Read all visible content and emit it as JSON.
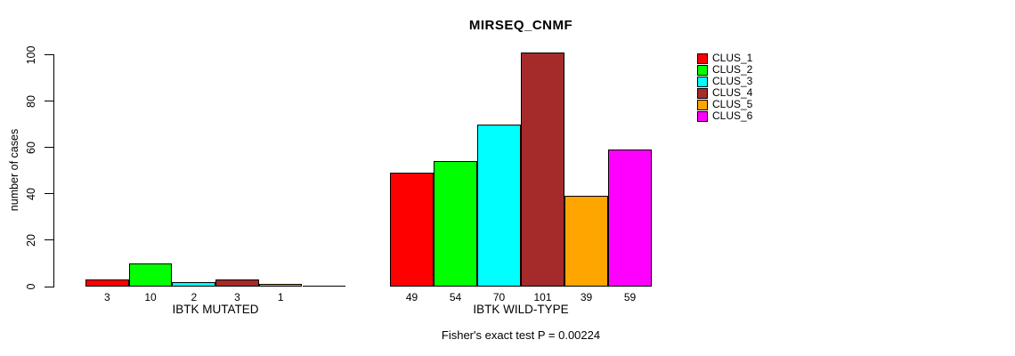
{
  "title": "MIRSEQ_CNMF",
  "chart_data": {
    "type": "bar",
    "title": "MIRSEQ_CNMF",
    "ylabel": "number of cases",
    "ylim": [
      0,
      100
    ],
    "yticks": [
      0,
      20,
      40,
      60,
      80,
      100
    ],
    "grid": false,
    "legend_position": "top-right",
    "series": [
      {
        "name": "CLUS_1",
        "color": "#ff0000"
      },
      {
        "name": "CLUS_2",
        "color": "#00ff00"
      },
      {
        "name": "CLUS_3",
        "color": "#00ffff"
      },
      {
        "name": "CLUS_4",
        "color": "#a52a2a"
      },
      {
        "name": "CLUS_5",
        "color": "#ffa500"
      },
      {
        "name": "CLUS_6",
        "color": "#ff00ff"
      }
    ],
    "groups": [
      {
        "label": "IBTK MUTATED",
        "values": [
          3,
          10,
          2,
          3,
          1,
          0
        ],
        "value_labels": [
          "3",
          "10",
          "2",
          "3",
          "1",
          ""
        ]
      },
      {
        "label": "IBTK WILD-TYPE",
        "values": [
          49,
          54,
          70,
          101,
          39,
          59
        ],
        "value_labels": [
          "49",
          "54",
          "70",
          "101",
          "39",
          "59"
        ]
      }
    ],
    "annotation": "Fisher's exact test P = 0.00224"
  }
}
